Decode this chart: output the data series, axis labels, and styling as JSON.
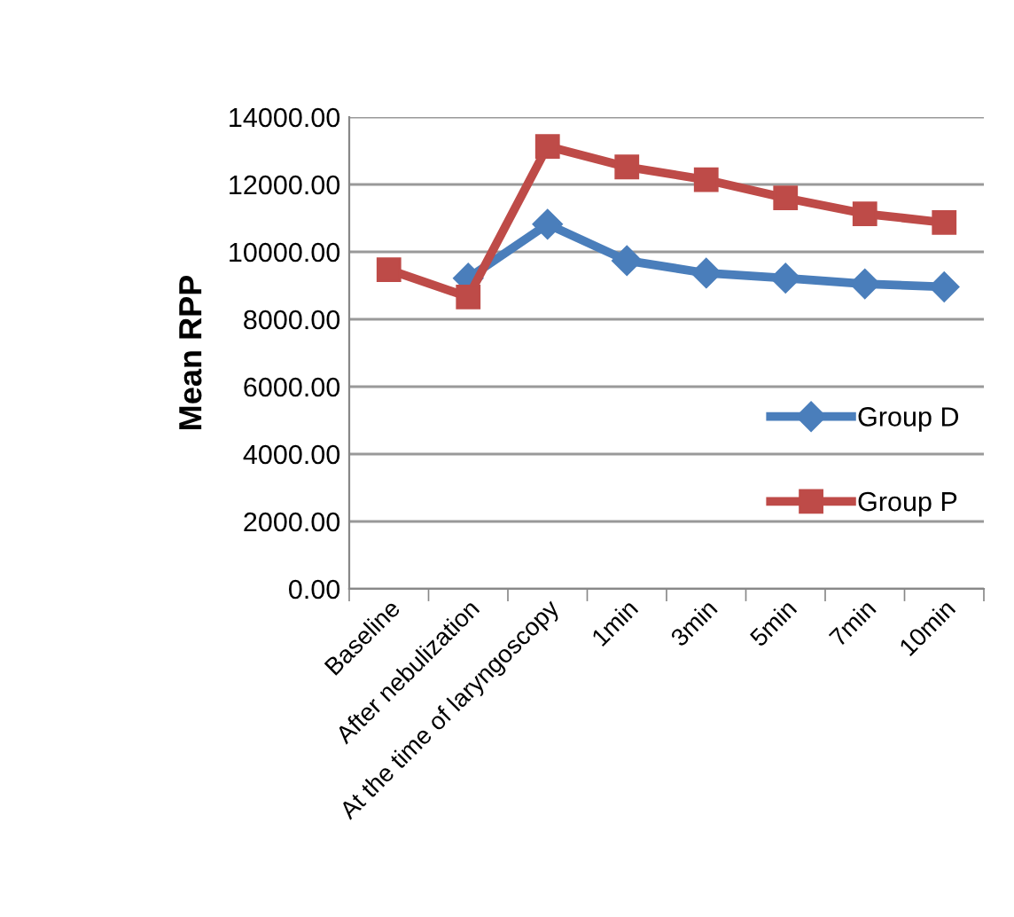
{
  "chart_data": {
    "type": "line",
    "ylabel": "Mean RPP",
    "categories": [
      "Baseline",
      "After nebulization",
      "At the time of laryngoscopy",
      "1min",
      "3min",
      "5min",
      "7min",
      "10min"
    ],
    "series": [
      {
        "name": "Group D",
        "color": "#4a7ebb",
        "marker": "diamond",
        "values": [
          null,
          9220,
          10820,
          9740,
          9370,
          9220,
          9050,
          8960
        ]
      },
      {
        "name": "Group P",
        "color": "#be4b48",
        "marker": "square",
        "values": [
          9470,
          8660,
          13130,
          12520,
          12140,
          11600,
          11130,
          10870
        ]
      }
    ],
    "ylim": [
      0,
      14000
    ],
    "yticks": [
      {
        "value": 0,
        "label": "0.00"
      },
      {
        "value": 2000,
        "label": "2000.00"
      },
      {
        "value": 4000,
        "label": "4000.00"
      },
      {
        "value": 6000,
        "label": "6000.00"
      },
      {
        "value": 8000,
        "label": "8000.00"
      },
      {
        "value": 10000,
        "label": "10000.00"
      },
      {
        "value": 12000,
        "label": "12000.00"
      },
      {
        "value": 14000,
        "label": "14000.00"
      }
    ],
    "grid": "y",
    "legend": "right",
    "line_style": "solid"
  }
}
